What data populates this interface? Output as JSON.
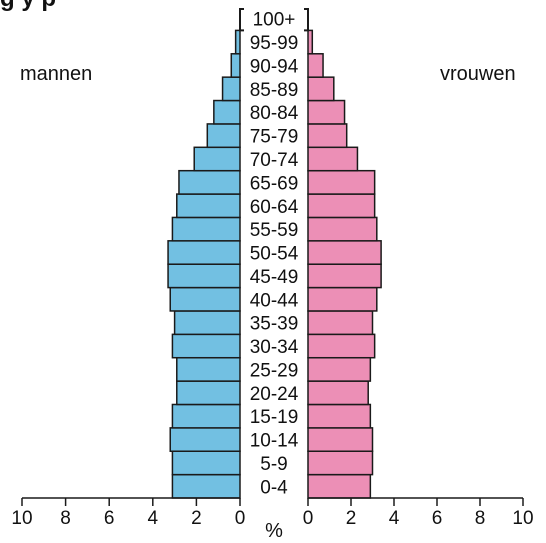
{
  "chart_data": {
    "type": "bar",
    "title_fragment": "g        y     p",
    "left_label": "mannen",
    "right_label": "vrouwen",
    "xlabel": "%",
    "categories": [
      "0-4",
      "5-9",
      "10-14",
      "15-19",
      "20-24",
      "25-29",
      "30-34",
      "35-39",
      "40-44",
      "45-49",
      "50-54",
      "55-59",
      "60-64",
      "65-69",
      "70-74",
      "75-79",
      "80-84",
      "85-89",
      "90-94",
      "95-99",
      "100+"
    ],
    "series": [
      {
        "name": "mannen",
        "values": [
          3.1,
          3.1,
          3.2,
          3.1,
          2.9,
          2.9,
          3.1,
          3.0,
          3.2,
          3.3,
          3.3,
          3.1,
          2.9,
          2.8,
          2.1,
          1.5,
          1.2,
          0.8,
          0.4,
          0.2,
          0.0
        ]
      },
      {
        "name": "vrouwen",
        "values": [
          2.9,
          3.0,
          3.0,
          2.9,
          2.8,
          2.9,
          3.1,
          3.0,
          3.2,
          3.4,
          3.4,
          3.2,
          3.1,
          3.1,
          2.3,
          1.8,
          1.7,
          1.2,
          0.7,
          0.2,
          0.0
        ]
      }
    ],
    "left_ticks": [
      "10",
      "8",
      "6",
      "4",
      "2",
      "0"
    ],
    "right_ticks": [
      "0",
      "2",
      "4",
      "6",
      "8",
      "10"
    ],
    "xlim": [
      0,
      10
    ],
    "grid": false,
    "colors": {
      "mannen": "#72C0E2",
      "vrouwen": "#EC8FB6",
      "outline": "#1a1a1a"
    }
  }
}
